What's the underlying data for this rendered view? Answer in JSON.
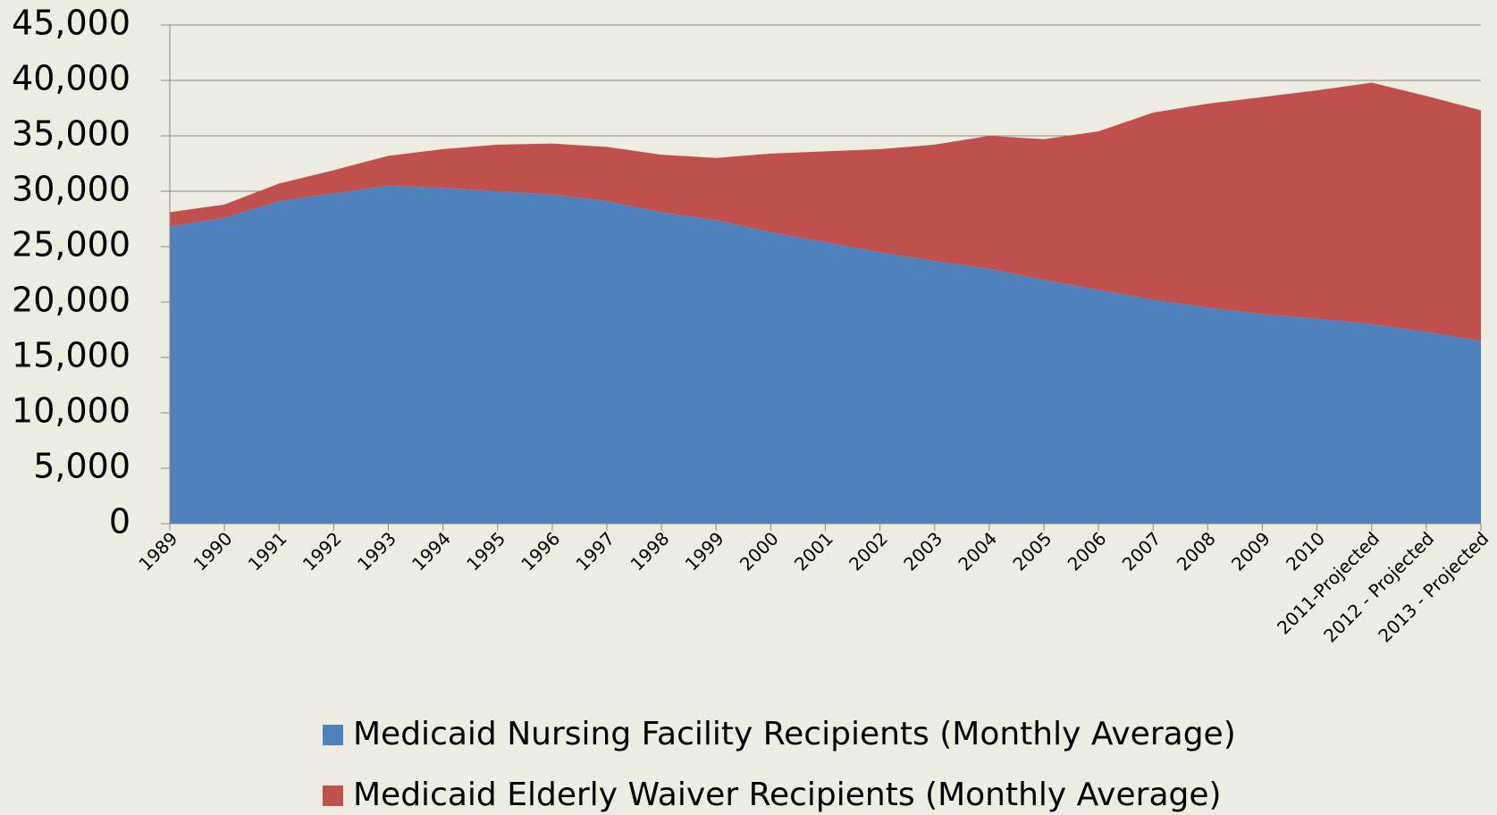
{
  "chart_data": {
    "type": "stacked_area",
    "categories": [
      "1989",
      "1990",
      "1991",
      "1992",
      "1993",
      "1994",
      "1995",
      "1996",
      "1997",
      "1998",
      "1999",
      "2000",
      "2001",
      "2002",
      "2003",
      "2004",
      "2005",
      "2006",
      "2007",
      "2008",
      "2009",
      "2010",
      "2011-Projected",
      "2012 - Projected",
      "2013 - Projected"
    ],
    "series": [
      {
        "name": "Medicaid Nursing Facility Recipients (Monthly Average)",
        "color": "#4f81bd",
        "values": [
          26800,
          27600,
          29100,
          29800,
          30500,
          30300,
          30000,
          29700,
          29100,
          28100,
          27400,
          26300,
          25400,
          24500,
          23700,
          23000,
          22000,
          21100,
          20200,
          19500,
          18900,
          18500,
          18000,
          17300,
          16500
        ]
      },
      {
        "name": "Medicaid Elderly Waiver Recipients (Monthly Average)",
        "color": "#c0504d",
        "values": [
          1300,
          1200,
          1600,
          2100,
          2700,
          3500,
          4200,
          4600,
          4900,
          5200,
          5600,
          7100,
          8200,
          9300,
          10500,
          12000,
          12700,
          14300,
          16900,
          18400,
          19600,
          20600,
          21800,
          21300,
          20800
        ]
      }
    ],
    "ylim": [
      0,
      45000
    ],
    "yticks": [
      0,
      {
        "value": 5000,
        "label": "5,000"
      },
      {
        "value": 10000,
        "label": "10,000"
      },
      {
        "value": 15000,
        "label": "15,000"
      },
      {
        "value": 20000,
        "label": "20,000"
      },
      {
        "value": 25000,
        "label": "25,000"
      },
      {
        "value": 30000,
        "label": "30,000"
      },
      {
        "value": 35000,
        "label": "35,000"
      },
      {
        "value": 40000,
        "label": "40,000"
      },
      {
        "value": 45000,
        "label": "45,000"
      }
    ],
    "grid": true
  }
}
